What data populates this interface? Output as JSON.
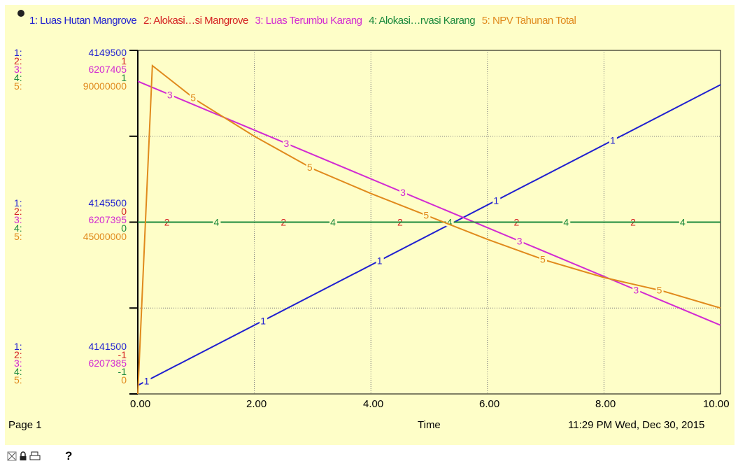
{
  "chart_data": {
    "type": "line",
    "xlabel": "Time",
    "xlim": [
      0,
      10
    ],
    "xticks": [
      "0.00",
      "2.00",
      "4.00",
      "6.00",
      "8.00",
      "10.00"
    ],
    "series": [
      {
        "id": "1",
        "name": "1: Luas Hutan Mangrove",
        "color": "#1f1fd0",
        "axis_labels": [
          "4149500",
          "4145500",
          "4141500"
        ],
        "ylim": [
          4141500,
          4149500
        ],
        "x": [
          0,
          10
        ],
        "y": [
          4141700,
          4148700
        ]
      },
      {
        "id": "2",
        "name": "2: Alokasi…si Mangrove",
        "color": "#d42020",
        "axis_labels": [
          "1",
          "0",
          "-1"
        ],
        "ylim": [
          -1,
          1
        ],
        "x": [
          0,
          10
        ],
        "y": [
          0,
          0
        ]
      },
      {
        "id": "3",
        "name": "3: Luas Terumbu Karang",
        "color": "#d22ad2",
        "axis_labels": [
          "6207405",
          "6207395",
          "6207385"
        ],
        "ylim": [
          6207385,
          6207405
        ],
        "x": [
          0,
          10
        ],
        "y": [
          6207403.2,
          6207389.0
        ]
      },
      {
        "id": "4",
        "name": "4: Alokasi…rvasi Karang",
        "color": "#1c8a3c",
        "axis_labels": [
          "1",
          "0",
          "-1"
        ],
        "ylim": [
          -1,
          1
        ],
        "x": [
          0,
          10
        ],
        "y": [
          0,
          0
        ]
      },
      {
        "id": "5",
        "name": "5: NPV Tahunan Total",
        "color": "#e08a1c",
        "axis_labels": [
          "90000000",
          "45000000",
          "0"
        ],
        "ylim": [
          0,
          90000000
        ],
        "x": [
          0,
          0.25,
          1,
          2,
          3,
          4,
          5,
          6,
          7,
          8,
          9,
          10
        ],
        "y": [
          0,
          86000000,
          77000000,
          67500000,
          59000000,
          52500000,
          46500000,
          40500000,
          35000000,
          30500000,
          27000000,
          22500000
        ]
      }
    ],
    "grid": true
  },
  "legend_items": [
    "1: Luas Hutan Mangrove",
    "2: Alokasi…si Mangrove",
    "3: Luas Terumbu Karang",
    "4: Alokasi…rvasi Karang",
    "5: NPV Tahunan Total"
  ],
  "footer": {
    "page": "Page 1",
    "xaxis_title": "Time",
    "timestamp": "11:29 PM   Wed, Dec 30, 2015"
  },
  "toolbar": {
    "icons": [
      "lock-icon",
      "print-icon"
    ],
    "help": "?"
  }
}
